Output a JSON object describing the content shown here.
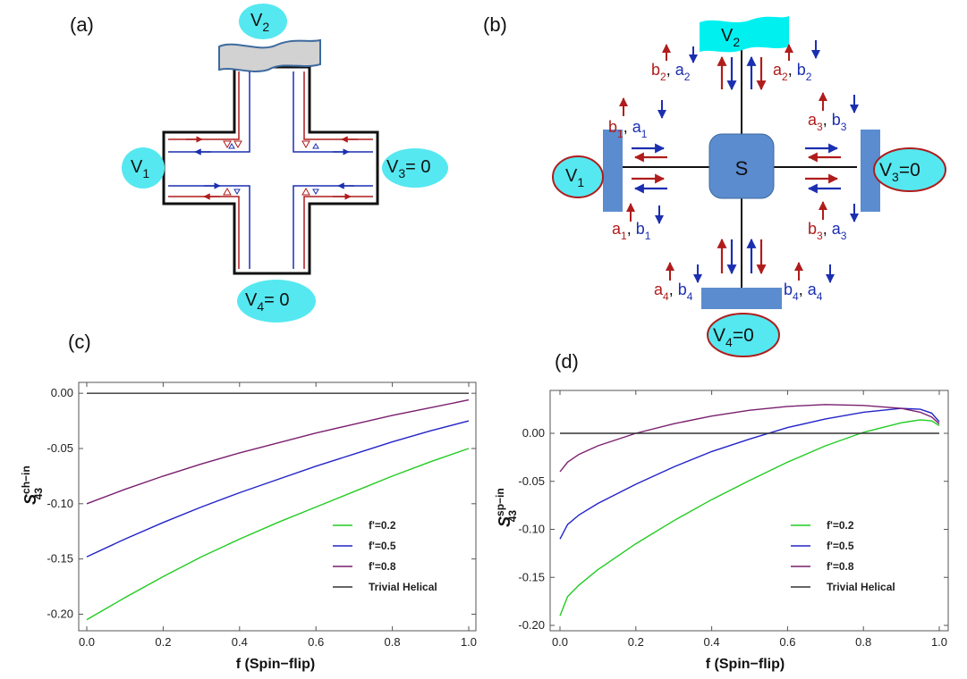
{
  "panels": {
    "a": {
      "label": "(a)",
      "v1": {
        "base": "V",
        "sub": "1"
      },
      "v2": {
        "base": "V",
        "sub": "2"
      },
      "v3": {
        "base": "V",
        "sub": "3",
        "suffix": "= 0"
      },
      "v4": {
        "base": "V",
        "sub": "4",
        "suffix": "=  0"
      }
    },
    "b": {
      "label": "(b)",
      "scatterer": "S",
      "v1": {
        "base": "V",
        "sub": "1"
      },
      "v2": {
        "base": "V",
        "sub": "2"
      },
      "v3": {
        "base": "V",
        "sub": "3",
        "suffix": "=0"
      },
      "v4": {
        "base": "V",
        "sub": "4",
        "suffix": "=0"
      },
      "mode_labels": [
        {
          "id": "b2a2",
          "first": "b",
          "first_sub": "2",
          "second": "a",
          "second_sub": "2"
        },
        {
          "id": "a2b2",
          "first": "a",
          "first_sub": "2",
          "second": "b",
          "second_sub": "2"
        },
        {
          "id": "b1a1",
          "first": "b",
          "first_sub": "1",
          "second": "a",
          "second_sub": "1"
        },
        {
          "id": "a3b3",
          "first": "a",
          "first_sub": "3",
          "second": "b",
          "second_sub": "3"
        },
        {
          "id": "a1b1",
          "first": "a",
          "first_sub": "1",
          "second": "b",
          "second_sub": "1"
        },
        {
          "id": "b3a3",
          "first": "b",
          "first_sub": "3",
          "second": "a",
          "second_sub": "3"
        },
        {
          "id": "a4b4",
          "first": "a",
          "first_sub": "4",
          "second": "b",
          "second_sub": "4"
        },
        {
          "id": "b4a4",
          "first": "b",
          "first_sub": "4",
          "second": "a",
          "second_sub": "4"
        }
      ]
    },
    "c": {
      "label": "(c)"
    },
    "d": {
      "label": "(d)"
    }
  },
  "colors": {
    "green": "#22cc22",
    "blue": "#2323c8",
    "purple": "#7a1f6e",
    "black": "#333333",
    "red_arrow": "#b01c1c",
    "blue_arrow": "#1b2fb0",
    "cyan": "#55e8f0"
  },
  "chart_data": [
    {
      "id": "c",
      "type": "line",
      "xlabel": "f (Spin−flip)",
      "ylabel": {
        "base": "S",
        "sup": "ch−in",
        "sub": "43"
      },
      "xlim": [
        0,
        1
      ],
      "ylim": [
        -0.215,
        0.005
      ],
      "xticks": [
        "0.0",
        "0.2",
        "0.4",
        "0.6",
        "0.8",
        "1.0"
      ],
      "xtick_values": [
        0,
        0.2,
        0.4,
        0.6,
        0.8,
        1.0
      ],
      "yticks": [
        "0.00",
        "-0.05",
        "-0.10",
        "-0.15",
        "-0.20"
      ],
      "ytick_values": [
        0,
        -0.05,
        -0.1,
        -0.15,
        -0.2
      ],
      "legend_position": "lower-right",
      "series": [
        {
          "name": "f'=0.2",
          "color": "#22cc22",
          "x": [
            0,
            0.1,
            0.2,
            0.3,
            0.4,
            0.5,
            0.6,
            0.7,
            0.8,
            0.9,
            1.0
          ],
          "values": [
            -0.205,
            -0.185,
            -0.166,
            -0.148,
            -0.132,
            -0.117,
            -0.103,
            -0.089,
            -0.075,
            -0.062,
            -0.05
          ]
        },
        {
          "name": "f'=0.5",
          "color": "#2323c8",
          "x": [
            0,
            0.1,
            0.2,
            0.3,
            0.4,
            0.5,
            0.6,
            0.7,
            0.8,
            0.9,
            1.0
          ],
          "values": [
            -0.148,
            -0.132,
            -0.117,
            -0.103,
            -0.09,
            -0.078,
            -0.066,
            -0.055,
            -0.044,
            -0.034,
            -0.025
          ]
        },
        {
          "name": "f'=0.8",
          "color": "#7a1f6e",
          "x": [
            0,
            0.1,
            0.2,
            0.3,
            0.4,
            0.5,
            0.6,
            0.7,
            0.8,
            0.9,
            1.0
          ],
          "values": [
            -0.1,
            -0.087,
            -0.075,
            -0.064,
            -0.054,
            -0.045,
            -0.036,
            -0.028,
            -0.02,
            -0.013,
            -0.006
          ]
        },
        {
          "name": "Trivial Helical",
          "color": "#333333",
          "x": [
            0,
            1.0
          ],
          "values": [
            0,
            0
          ]
        }
      ]
    },
    {
      "id": "d",
      "type": "line",
      "xlabel": "f (Spin−flip)",
      "ylabel": {
        "base": "S",
        "sup": "sp−in",
        "sub": "43"
      },
      "xlim": [
        0,
        1
      ],
      "ylim": [
        -0.2,
        0.04
      ],
      "xticks": [
        "0.0",
        "0.2",
        "0.4",
        "0.6",
        "0.8",
        "1.0"
      ],
      "xtick_values": [
        0,
        0.2,
        0.4,
        0.6,
        0.8,
        1.0
      ],
      "yticks": [
        "0.00",
        "-0.05",
        "-0.10",
        "-0.15",
        "-0.20"
      ],
      "ytick_values": [
        0,
        -0.05,
        -0.1,
        -0.15,
        -0.2
      ],
      "legend_position": "lower-right",
      "series": [
        {
          "name": "f'=0.2",
          "color": "#22cc22",
          "x": [
            0,
            0.02,
            0.05,
            0.1,
            0.2,
            0.3,
            0.4,
            0.5,
            0.6,
            0.7,
            0.8,
            0.9,
            0.95,
            0.98,
            1.0
          ],
          "values": [
            -0.19,
            -0.17,
            -0.158,
            -0.142,
            -0.115,
            -0.091,
            -0.069,
            -0.049,
            -0.03,
            -0.013,
            0.001,
            0.011,
            0.014,
            0.013,
            0.008
          ]
        },
        {
          "name": "f'=0.5",
          "color": "#2323c8",
          "x": [
            0,
            0.02,
            0.05,
            0.1,
            0.2,
            0.3,
            0.4,
            0.5,
            0.6,
            0.7,
            0.8,
            0.9,
            0.95,
            0.98,
            1.0
          ],
          "values": [
            -0.11,
            -0.095,
            -0.085,
            -0.073,
            -0.053,
            -0.035,
            -0.019,
            -0.006,
            0.006,
            0.015,
            0.022,
            0.026,
            0.025,
            0.021,
            0.012
          ]
        },
        {
          "name": "f'=0.8",
          "color": "#7a1f6e",
          "x": [
            0,
            0.02,
            0.05,
            0.1,
            0.2,
            0.3,
            0.4,
            0.5,
            0.6,
            0.7,
            0.8,
            0.9,
            0.95,
            0.98,
            1.0
          ],
          "values": [
            -0.04,
            -0.03,
            -0.022,
            -0.013,
            0.0,
            0.01,
            0.018,
            0.024,
            0.028,
            0.03,
            0.029,
            0.026,
            0.022,
            0.017,
            0.01
          ]
        },
        {
          "name": "Trivial Helical",
          "color": "#333333",
          "x": [
            0,
            1.0
          ],
          "values": [
            0,
            0
          ]
        }
      ]
    }
  ]
}
